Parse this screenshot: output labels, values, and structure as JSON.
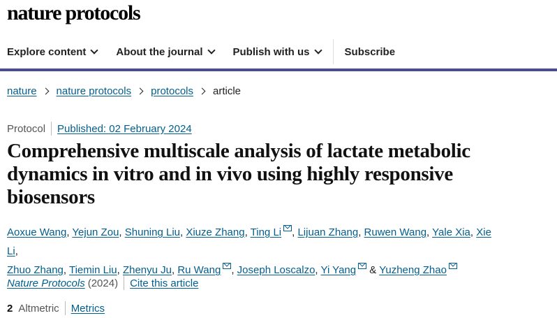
{
  "header": {
    "logo": "nature protocols"
  },
  "nav": {
    "items": [
      {
        "label": "Explore content"
      },
      {
        "label": "About the journal"
      },
      {
        "label": "Publish with us"
      }
    ],
    "subscribe": "Subscribe"
  },
  "breadcrumb": [
    "nature",
    "nature protocols",
    "protocols",
    "article"
  ],
  "article": {
    "type": "Protocol",
    "published": "Published: 02 February 2024",
    "title": "Comprehensive multiscale analysis of lactate metabolic dynamics in vitro and in vivo using highly responsive biosensors",
    "authors": [
      {
        "name": "Aoxue Wang",
        "email": false,
        "after": ", "
      },
      {
        "name": "Yejun Zou",
        "email": false,
        "after": ", "
      },
      {
        "name": "Shuning Liu",
        "email": false,
        "after": ", "
      },
      {
        "name": "Xiuze Zhang",
        "email": false,
        "after": ", "
      },
      {
        "name": "Ting Li",
        "email": true,
        "after": ", "
      },
      {
        "name": "Lijuan Zhang",
        "email": false,
        "after": ", "
      },
      {
        "name": "Ruwen Wang",
        "email": false,
        "after": ", "
      },
      {
        "name": "Yale Xia",
        "email": false,
        "after": ", "
      },
      {
        "name": "Xie Li",
        "email": false,
        "after": ", "
      },
      {
        "name": "Zhuo Zhang",
        "email": false,
        "after": ", "
      },
      {
        "name": "Tiemin Liu",
        "email": false,
        "after": ", "
      },
      {
        "name": "Zhenyu Ju",
        "email": false,
        "after": ", "
      },
      {
        "name": "Ru Wang",
        "email": true,
        "after": ", "
      },
      {
        "name": "Joseph Loscalzo",
        "email": false,
        "after": ", "
      },
      {
        "name": "Yi Yang",
        "email": true,
        "after": " & "
      },
      {
        "name": "Yuzheng Zhao",
        "email": true,
        "after": ""
      }
    ],
    "journal": "Nature Protocols",
    "year": "(2024)",
    "cite": "Cite this article",
    "altmetric_score": "2",
    "altmetric_label": "Altmetric",
    "metrics": "Metrics"
  }
}
